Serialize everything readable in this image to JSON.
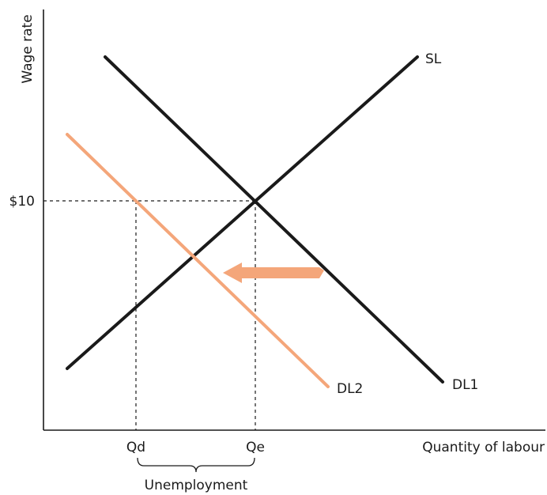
{
  "axes": {
    "y_label": "Wage rate",
    "x_label": "Quantity of labour"
  },
  "wage_tick": "$10",
  "quantity_ticks": {
    "qd": "Qd",
    "qe": "Qe"
  },
  "curves": {
    "supply": {
      "label": "SL",
      "color": "#1a1a1a"
    },
    "demand_original": {
      "label": "DL1",
      "color": "#1a1a1a"
    },
    "demand_new": {
      "label": "DL2",
      "color": "#f4a67a"
    }
  },
  "shift_arrow": {
    "color": "#f4a67a",
    "direction": "left"
  },
  "brace": {
    "label": "Unemployment"
  }
}
